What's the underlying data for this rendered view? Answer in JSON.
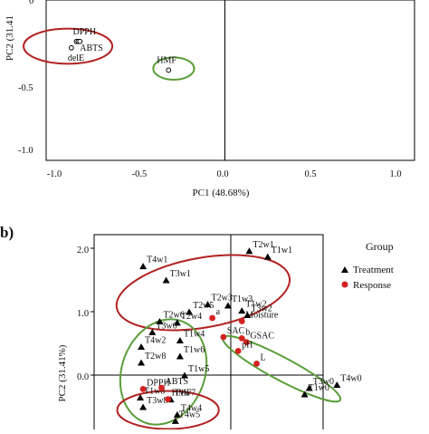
{
  "chart_data": [
    {
      "panel_label": "",
      "type": "scatter",
      "xlabel": "PC1 (48.68%)",
      "ylabel": "PC2 (31.41",
      "xticks": [
        "-1.0",
        "-0.5",
        "0.0",
        "0.5",
        "1.0"
      ],
      "yticks": [
        "0",
        "-0.5",
        "-1.0"
      ],
      "xlim": [
        -1.15,
        1.15
      ],
      "ylim": [
        -1.18,
        0.15
      ],
      "points": [
        {
          "label": "DPPH",
          "x": -0.87,
          "y": -0.26,
          "show": true
        },
        {
          "label": "",
          "x": -0.86,
          "y": -0.26,
          "show": true
        },
        {
          "label": "delE",
          "x": -0.9,
          "y": -0.3,
          "show": true
        },
        {
          "label": "ABTS",
          "x": -0.85,
          "y": -0.26,
          "show": true
        },
        {
          "label": "HMF",
          "x": -0.33,
          "y": -0.44,
          "show": true
        },
        {
          "label": "",
          "x": 0.92,
          "y": 0.11,
          "show": false
        }
      ],
      "ellipses": [
        {
          "color": "#b22222",
          "cx": -0.92,
          "cy": -0.29,
          "rx": 0.26,
          "ry": 0.11
        },
        {
          "color": "#5a9e3a",
          "cx": -0.3,
          "cy": -0.43,
          "rx": 0.12,
          "ry": 0.07
        },
        {
          "color": "#b22222",
          "cx": 1.0,
          "cy": 0.12,
          "rx": 0.1,
          "ry": 0.06
        }
      ]
    },
    {
      "panel_label": "b)",
      "type": "scatter",
      "xlabel": "",
      "ylabel": "PC2 (31.41%)",
      "yticks": [
        "2.0",
        "1.0",
        "0.0"
      ],
      "xlim": [
        -1.35,
        1.55
      ],
      "ylim": [
        -0.85,
        2.4
      ],
      "legend": {
        "title": "Group",
        "position": "right",
        "items": [
          {
            "name": "Treatment",
            "marker": "triangle",
            "color": "#000000"
          },
          {
            "name": "Response",
            "marker": "circle",
            "color": "#d42222"
          }
        ]
      },
      "series": [
        {
          "name": "Treatment",
          "points": [
            {
              "label": "T2w1",
              "x": 0.2,
              "y": 1.96
            },
            {
              "label": "T4w1",
              "x": -0.95,
              "y": 1.72
            },
            {
              "label": "T1w1",
              "x": 0.4,
              "y": 1.87
            },
            {
              "label": "T3w1",
              "x": -0.7,
              "y": 1.5
            },
            {
              "label": "T2w3",
              "x": -0.25,
              "y": 1.12
            },
            {
              "label": "T1w3",
              "x": -0.03,
              "y": 1.1
            },
            {
              "label": "T1w2",
              "x": 0.12,
              "y": 1.02
            },
            {
              "label": "T2w5",
              "x": -0.45,
              "y": 1.0
            },
            {
              "label": "T3w2",
              "x": 0.18,
              "y": 0.95
            },
            {
              "label": "T2w6",
              "x": -0.77,
              "y": 0.85
            },
            {
              "label": "T2w4",
              "x": -0.58,
              "y": 0.83
            },
            {
              "label": "T3w6",
              "x": -0.85,
              "y": 0.68
            },
            {
              "label": "T1w4",
              "x": -0.55,
              "y": 0.55
            },
            {
              "label": "T4w2",
              "x": -0.97,
              "y": 0.45
            },
            {
              "label": "T1w6",
              "x": -0.55,
              "y": 0.3
            },
            {
              "label": "T2w8",
              "x": -0.97,
              "y": 0.2
            },
            {
              "label": "T3w0",
              "x": 0.85,
              "y": -0.2
            },
            {
              "label": "T4w0",
              "x": 1.15,
              "y": -0.15
            },
            {
              "label": "T1w5",
              "x": -0.5,
              "y": 0.0
            },
            {
              "label": "T1w0",
              "x": 0.8,
              "y": -0.3
            },
            {
              "label": "T1w8",
              "x": -0.98,
              "y": -0.35
            },
            {
              "label": "T1w7",
              "x": -0.65,
              "y": -0.38
            },
            {
              "label": "T3w8",
              "x": -0.95,
              "y": -0.5
            },
            {
              "label": "T4w4",
              "x": -0.58,
              "y": -0.62
            },
            {
              "label": "T4w5",
              "x": -0.6,
              "y": -0.72
            }
          ]
        },
        {
          "name": "Response",
          "points": [
            {
              "label": "a",
              "x": -0.2,
              "y": 0.9
            },
            {
              "label": "Moisture",
              "x": 0.12,
              "y": 0.85
            },
            {
              "label": "SAC",
              "x": -0.08,
              "y": 0.6
            },
            {
              "label": "b",
              "x": 0.12,
              "y": 0.58
            },
            {
              "label": "GSAC",
              "x": 0.17,
              "y": 0.52
            },
            {
              "label": "pH",
              "x": 0.08,
              "y": 0.38
            },
            {
              "label": "L",
              "x": 0.28,
              "y": 0.18
            },
            {
              "label": "DPPH",
              "x": -0.95,
              "y": -0.22
            },
            {
              "label": "ABTS",
              "x": -0.75,
              "y": -0.2
            },
            {
              "label": "HMF",
              "x": -0.68,
              "y": -0.38
            }
          ]
        }
      ],
      "ellipses": [
        {
          "color": "#b22222",
          "cx": -0.3,
          "cy": 1.3,
          "rx": 0.95,
          "ry": 0.55,
          "angle": -10
        },
        {
          "color": "#5a9e3a",
          "cx": -0.73,
          "cy": 0.05,
          "rx": 0.45,
          "ry": 0.85,
          "angle": 20
        },
        {
          "color": "#5a9e3a",
          "cx": 0.55,
          "cy": 0.1,
          "rx": 0.72,
          "ry": 0.18,
          "angle": 28
        },
        {
          "color": "#b22222",
          "cx": -0.68,
          "cy": -0.55,
          "rx": 0.55,
          "ry": 0.3,
          "angle": 0
        }
      ]
    }
  ],
  "colors": {
    "treatment": "#000000",
    "response": "#d42222",
    "red_ellipse": "#b22222",
    "green_ellipse": "#5a9e3a"
  }
}
